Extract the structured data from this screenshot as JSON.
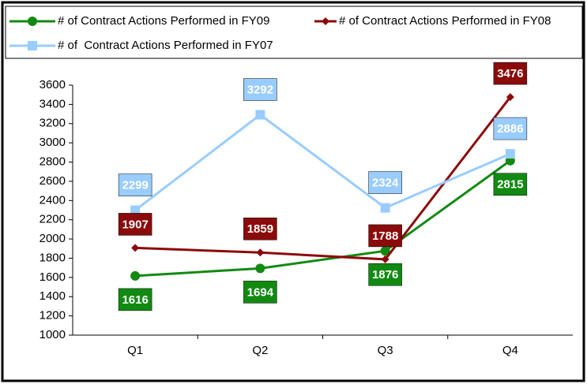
{
  "chart_data": {
    "type": "line",
    "categories": [
      "Q1",
      "Q2",
      "Q3",
      "Q4"
    ],
    "series": [
      {
        "name": "# of Contract Actions Performed in FY09",
        "color": "#128a12",
        "marker": "circle",
        "values": [
          1616,
          1694,
          1876,
          2815
        ]
      },
      {
        "name": "# of Contract Actions Performed in FY08",
        "color": "#8b0a0a",
        "marker": "diamond",
        "values": [
          1907,
          1859,
          1788,
          3476
        ]
      },
      {
        "name": "# of  Contract Actions Performed in FY07",
        "color": "#99ccff",
        "marker": "square",
        "values": [
          2299,
          3292,
          2324,
          2886
        ]
      }
    ],
    "ylim": [
      1000,
      3600
    ],
    "yticks": [
      1000,
      1200,
      1400,
      1600,
      1800,
      2000,
      2200,
      2400,
      2600,
      2800,
      3000,
      3200,
      3400,
      3600
    ],
    "grid": false
  }
}
